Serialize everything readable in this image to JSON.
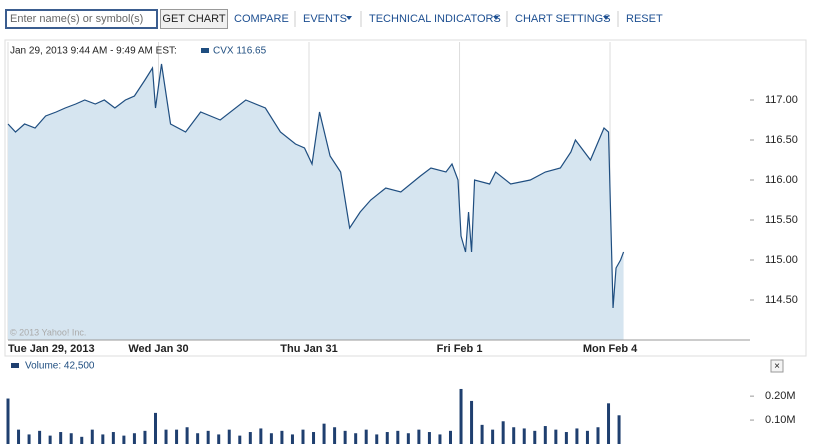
{
  "toolbar": {
    "input_placeholder": "Enter name(s) or symbol(s)",
    "button": "GET CHART",
    "items": [
      "COMPARE",
      "EVENTS",
      "TECHNICAL INDICATORS",
      "CHART SETTINGS",
      "RESET"
    ]
  },
  "chart_data": [
    {
      "type": "area",
      "title": "Jan 29, 2013 9:44 AM - 9:49 AM EST:",
      "series_label": "CVX 116.65",
      "credit": "© 2013 Yahoo! Inc.",
      "color": "#1f4e80",
      "fill": "#d6e5f0",
      "x": [
        0,
        0.05,
        0.11,
        0.18,
        0.25,
        0.32,
        0.38,
        0.45,
        0.51,
        0.58,
        0.64,
        0.71,
        0.78,
        0.84,
        0.91,
        0.96,
        0.98,
        1.02,
        1.08,
        1.18,
        1.28,
        1.41,
        1.58,
        1.71,
        1.81,
        1.91,
        1.97,
        2.02,
        2.07,
        2.14,
        2.21,
        2.27,
        2.34,
        2.41,
        2.51,
        2.61,
        2.74,
        2.81,
        2.91,
        2.95,
        2.99,
        3.01,
        3.04,
        3.06,
        3.08,
        3.1,
        3.2,
        3.24,
        3.34,
        3.47,
        3.57,
        3.67,
        3.74,
        3.77,
        3.87,
        3.96,
        3.99,
        4.02,
        4.04,
        4.07,
        4.09
      ],
      "values": [
        116.7,
        116.6,
        116.7,
        116.65,
        116.8,
        116.85,
        116.9,
        116.95,
        117.0,
        116.95,
        117.0,
        116.9,
        117.0,
        117.05,
        117.25,
        117.4,
        116.9,
        117.45,
        116.7,
        116.6,
        116.85,
        116.75,
        117.0,
        116.9,
        116.6,
        116.45,
        116.4,
        116.2,
        116.85,
        116.3,
        116.1,
        115.4,
        115.6,
        115.75,
        115.9,
        115.85,
        116.05,
        116.15,
        116.1,
        116.2,
        116.0,
        115.3,
        115.1,
        115.6,
        115.1,
        116.0,
        115.95,
        116.1,
        115.95,
        116.0,
        116.1,
        116.15,
        116.35,
        116.5,
        116.25,
        116.65,
        116.6,
        114.4,
        114.9,
        115.0,
        115.1
      ],
      "xlim": [
        0,
        4.93
      ],
      "ylim": [
        114.0,
        117.7
      ],
      "xticks": [
        {
          "value": 0,
          "label": "Tue Jan 29, 2013"
        },
        {
          "value": 1,
          "label": "Wed Jan 30"
        },
        {
          "value": 2,
          "label": "Thu Jan 31"
        },
        {
          "value": 3,
          "label": "Fri Feb 1"
        },
        {
          "value": 4,
          "label": "Mon Feb 4"
        }
      ],
      "yticks": [
        {
          "value": 117,
          "label": "117.00"
        },
        {
          "value": 116.5,
          "label": "116.50"
        },
        {
          "value": 116,
          "label": "116.00"
        },
        {
          "value": 115.5,
          "label": "115.50"
        },
        {
          "value": 115,
          "label": "115.00"
        },
        {
          "value": 114.5,
          "label": "114.50"
        }
      ]
    },
    {
      "type": "bar",
      "title": "Volume: 42,500",
      "color": "#1f3f6f",
      "x": [
        0,
        0.07,
        0.14,
        0.21,
        0.28,
        0.35,
        0.42,
        0.49,
        0.56,
        0.63,
        0.7,
        0.77,
        0.84,
        0.91,
        0.98,
        1.05,
        1.12,
        1.19,
        1.26,
        1.33,
        1.4,
        1.47,
        1.54,
        1.61,
        1.68,
        1.75,
        1.82,
        1.89,
        1.96,
        2.03,
        2.1,
        2.17,
        2.24,
        2.31,
        2.38,
        2.45,
        2.52,
        2.59,
        2.66,
        2.73,
        2.8,
        2.87,
        2.94,
        3.01,
        3.08,
        3.15,
        3.22,
        3.29,
        3.36,
        3.43,
        3.5,
        3.57,
        3.64,
        3.71,
        3.78,
        3.85,
        3.92,
        3.99,
        4.06
      ],
      "values": [
        190000,
        60000,
        40000,
        55000,
        35000,
        50000,
        45000,
        30000,
        60000,
        40000,
        50000,
        35000,
        45000,
        55000,
        130000,
        60000,
        60000,
        70000,
        45000,
        55000,
        40000,
        60000,
        35000,
        50000,
        65000,
        45000,
        55000,
        40000,
        60000,
        50000,
        85000,
        70000,
        55000,
        45000,
        60000,
        40000,
        50000,
        55000,
        45000,
        60000,
        50000,
        40000,
        55000,
        230000,
        180000,
        80000,
        60000,
        95000,
        70000,
        65000,
        55000,
        75000,
        60000,
        50000,
        65000,
        55000,
        70000,
        170000,
        120000
      ],
      "xlim": [
        0,
        4.93
      ],
      "ylim": [
        0,
        280000
      ],
      "yticks": [
        {
          "value": 200000,
          "label": "0.20M"
        },
        {
          "value": 100000,
          "label": "0.10M"
        }
      ]
    }
  ]
}
